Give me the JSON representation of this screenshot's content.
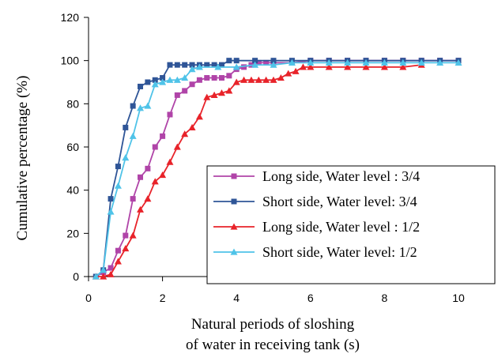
{
  "chart_data": {
    "type": "line",
    "title": "",
    "xlabel_lines": [
      "Natural periods of sloshing",
      "of water in receiving tank (s)"
    ],
    "ylabel": "Cumulative percentage (%)",
    "xlim": [
      0,
      10
    ],
    "ylim": [
      0,
      120
    ],
    "x_ticks": [
      0,
      2,
      4,
      6,
      8,
      10
    ],
    "y_ticks": [
      0,
      20,
      40,
      60,
      80,
      100,
      120
    ],
    "x_tick_labels": [
      "0",
      "2",
      "4",
      "6",
      "8",
      "10"
    ],
    "y_tick_labels": [
      "0",
      "20",
      "40",
      "60",
      "80",
      "100",
      "120"
    ],
    "grid": false,
    "legend_position": "lower-right",
    "series": [
      {
        "name": "Long side, Water level : 3/4",
        "color": "#B044A8",
        "marker": "square",
        "x": [
          0.2,
          0.4,
          0.6,
          0.8,
          1.0,
          1.2,
          1.4,
          1.6,
          1.8,
          2.0,
          2.2,
          2.4,
          2.6,
          2.8,
          3.0,
          3.2,
          3.4,
          3.6,
          3.8,
          4.0,
          4.2,
          4.4,
          4.6,
          4.8,
          5.0,
          5.5,
          6.0,
          6.5,
          7.0,
          7.5,
          8.0,
          8.5,
          9.0,
          9.5,
          10.0
        ],
        "y": [
          0,
          2,
          4,
          12,
          19,
          36,
          46,
          50,
          60,
          65,
          75,
          84,
          86,
          89,
          91,
          92,
          92,
          92,
          93,
          96,
          97,
          98,
          99,
          99,
          99,
          99,
          100,
          100,
          100,
          100,
          100,
          100,
          100,
          100,
          100
        ]
      },
      {
        "name": "Short side, Water level: 3/4",
        "color": "#2F5597",
        "marker": "square",
        "x": [
          0.2,
          0.4,
          0.6,
          0.8,
          1.0,
          1.2,
          1.4,
          1.6,
          1.8,
          2.0,
          2.2,
          2.4,
          2.6,
          2.8,
          3.0,
          3.2,
          3.4,
          3.6,
          3.8,
          4.0,
          4.5,
          5.0,
          5.5,
          6.0,
          6.5,
          7.0,
          7.5,
          8.0,
          8.5,
          9.0,
          9.5,
          10.0
        ],
        "y": [
          0,
          3,
          36,
          51,
          69,
          79,
          88,
          90,
          91,
          92,
          98,
          98,
          98,
          98,
          98,
          98,
          98,
          98,
          100,
          100,
          100,
          100,
          100,
          100,
          100,
          100,
          100,
          100,
          100,
          100,
          100,
          100
        ]
      },
      {
        "name": "Long side, Water level : 1/2",
        "color": "#E8232A",
        "marker": "triangle",
        "x": [
          0.2,
          0.4,
          0.6,
          0.8,
          1.0,
          1.2,
          1.4,
          1.6,
          1.8,
          2.0,
          2.2,
          2.4,
          2.6,
          2.8,
          3.0,
          3.2,
          3.4,
          3.6,
          3.8,
          4.0,
          4.2,
          4.4,
          4.6,
          4.8,
          5.0,
          5.2,
          5.4,
          5.6,
          5.8,
          6.0,
          6.5,
          7.0,
          7.5,
          8.0,
          8.5,
          9.0
        ],
        "y": [
          0,
          0,
          1,
          7,
          13,
          19,
          31,
          36,
          44,
          47,
          53,
          60,
          66,
          69,
          74,
          83,
          84,
          85,
          86,
          90,
          91,
          91,
          91,
          91,
          91,
          92,
          94,
          95,
          97,
          97,
          97,
          97,
          97,
          97,
          97,
          98
        ]
      },
      {
        "name": "Short side, Water level: 1/2",
        "color": "#4FC3E8",
        "marker": "triangle",
        "x": [
          0.2,
          0.4,
          0.6,
          0.8,
          1.0,
          1.2,
          1.4,
          1.6,
          1.8,
          2.0,
          2.2,
          2.4,
          2.6,
          2.8,
          3.0,
          3.5,
          4.0,
          4.5,
          5.0,
          5.5,
          6.0,
          6.5,
          7.0,
          7.5,
          8.0,
          8.5,
          9.0,
          9.5,
          10.0
        ],
        "y": [
          0,
          3,
          30,
          42,
          55,
          65,
          78,
          79,
          89,
          90,
          91,
          91,
          92,
          96,
          97,
          97,
          97,
          98,
          98,
          99,
          99,
          99,
          99,
          99,
          99,
          99,
          99,
          99,
          99
        ]
      }
    ]
  }
}
